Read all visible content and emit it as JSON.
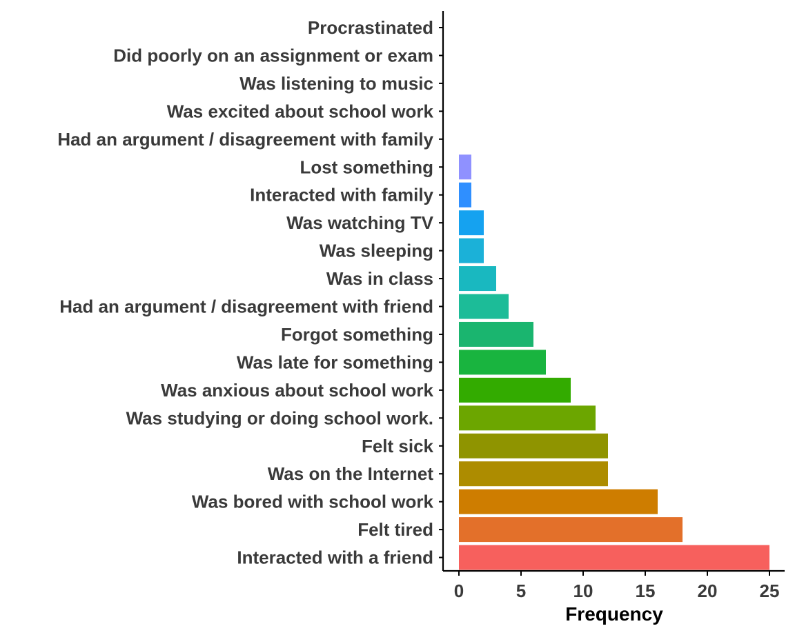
{
  "chart_data": {
    "type": "bar",
    "orientation": "horizontal",
    "title": "",
    "xlabel": "Frequency",
    "ylabel": "",
    "xlim": [
      0,
      25
    ],
    "x_ticks": [
      0,
      5,
      10,
      15,
      20,
      25
    ],
    "grid": false,
    "legend": "none",
    "categories": [
      "Procrastinated",
      "Did poorly on an assignment or exam",
      "Was listening to music",
      "Was excited about school work",
      "Had an argument / disagreement with family",
      "Lost something",
      "Interacted with family",
      "Was watching TV",
      "Was sleeping",
      "Was in class",
      "Had an argument / disagreement with friend",
      "Forgot something",
      "Was late for something",
      "Was anxious about school work",
      "Was studying or doing school work.",
      "Felt sick",
      "Was on the Internet",
      "Was bored with school work",
      "Felt tired",
      "Interacted with a friend"
    ],
    "values": [
      0,
      0,
      0,
      0,
      0,
      1,
      1,
      2,
      2,
      3,
      4,
      6,
      7,
      9,
      11,
      12,
      12,
      16,
      18,
      25
    ],
    "colors": [
      "#ff61c3",
      "#fb61d7",
      "#f066e8",
      "#db72fb",
      "#b983ff",
      "#8f91ff",
      "#2f8fff",
      "#15a2f0",
      "#1bb1d8",
      "#19b8c0",
      "#1cbc98",
      "#1ab56f",
      "#19b43f",
      "#33ab00",
      "#6ca600",
      "#8f9400",
      "#ad8c00",
      "#ce7d00",
      "#e3702a",
      "#f7605d"
    ]
  }
}
